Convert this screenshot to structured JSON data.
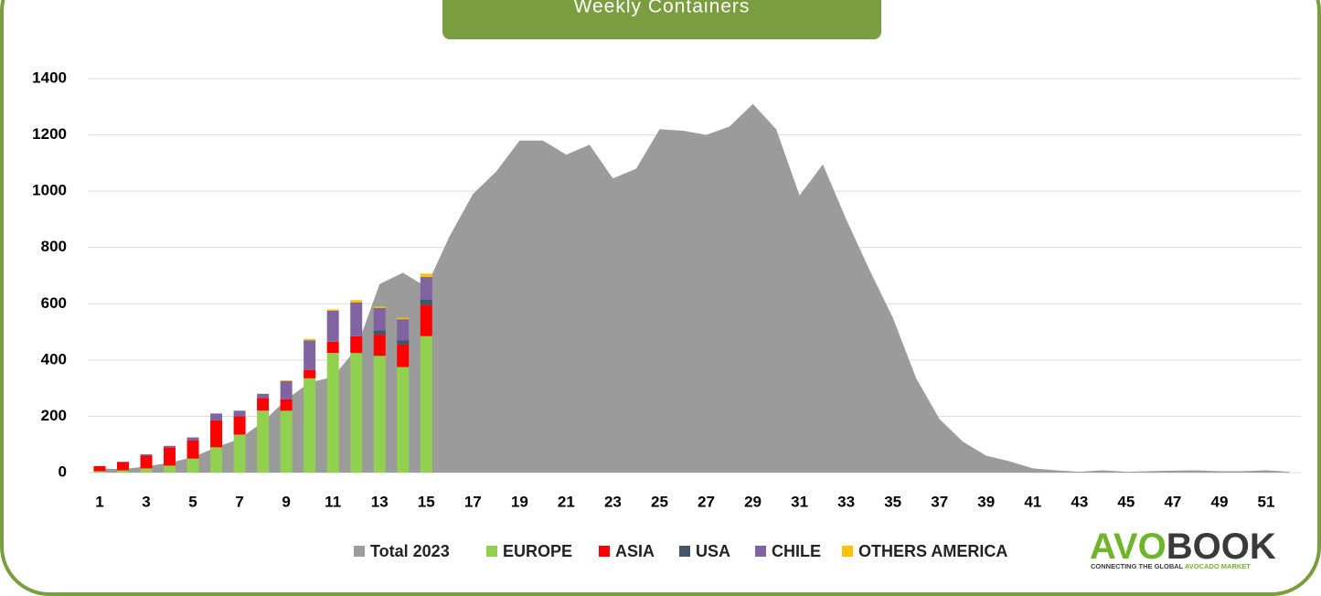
{
  "chart_data": {
    "type": "bar",
    "title": "Weekly Containers",
    "categories": [
      "1",
      null,
      "3",
      null,
      "5",
      null,
      "7",
      null,
      "9",
      null,
      "11",
      null,
      "13",
      null,
      "15",
      null,
      "17",
      null,
      "19",
      null,
      "21",
      null,
      "23",
      null,
      "25",
      null,
      "27",
      null,
      "29",
      null,
      "31",
      null,
      "33",
      null,
      "35",
      null,
      "37",
      null,
      "39",
      null,
      "41",
      null,
      "43",
      null,
      "45",
      null,
      "47",
      null,
      "49",
      null,
      "51",
      null
    ],
    "series": [
      {
        "name": "Total 2023",
        "type": "area",
        "color": "#9b9b9b",
        "values": [
          15,
          12,
          22,
          35,
          55,
          90,
          120,
          180,
          260,
          320,
          340,
          440,
          670,
          710,
          660,
          840,
          990,
          1070,
          1180,
          1180,
          1130,
          1165,
          1045,
          1080,
          1220,
          1215,
          1200,
          1230,
          1310,
          1220,
          985,
          1095,
          900,
          720,
          550,
          335,
          190,
          110,
          60,
          40,
          15,
          8,
          3,
          8,
          3,
          5,
          7,
          8,
          5,
          5,
          8,
          3
        ]
      },
      {
        "name": "EUROPE",
        "type": "bar",
        "color": "#92d050",
        "values": [
          5,
          8,
          15,
          25,
          50,
          90,
          135,
          220,
          220,
          335,
          425,
          425,
          415,
          375,
          485,
          null,
          null,
          null,
          null,
          null,
          null,
          null,
          null,
          null,
          null,
          null,
          null,
          null,
          null,
          null,
          null,
          null,
          null,
          null,
          null,
          null,
          null,
          null,
          null,
          null,
          null,
          null,
          null,
          null,
          null,
          null,
          null,
          null,
          null,
          null,
          null,
          null
        ]
      },
      {
        "name": "ASIA",
        "type": "bar",
        "color": "#ff0000",
        "values": [
          18,
          30,
          45,
          65,
          65,
          95,
          65,
          45,
          40,
          30,
          40,
          60,
          75,
          80,
          110,
          null,
          null,
          null,
          null,
          null,
          null,
          null,
          null,
          null,
          null,
          null,
          null,
          null,
          null,
          null,
          null,
          null,
          null,
          null,
          null,
          null,
          null,
          null,
          null,
          null,
          null,
          null,
          null,
          null,
          null,
          null,
          null,
          null,
          null,
          null,
          null,
          null
        ]
      },
      {
        "name": "USA",
        "type": "bar",
        "color": "#44546a",
        "values": [
          0,
          0,
          0,
          0,
          0,
          0,
          0,
          0,
          0,
          0,
          0,
          0,
          15,
          15,
          20,
          null,
          null,
          null,
          null,
          null,
          null,
          null,
          null,
          null,
          null,
          null,
          null,
          null,
          null,
          null,
          null,
          null,
          null,
          null,
          null,
          null,
          null,
          null,
          null,
          null,
          null,
          null,
          null,
          null,
          null,
          null,
          null,
          null,
          null,
          null,
          null,
          null
        ]
      },
      {
        "name": "CHILE",
        "type": "bar",
        "color": "#8064a2",
        "values": [
          0,
          0,
          5,
          5,
          10,
          25,
          20,
          15,
          65,
          105,
          110,
          120,
          80,
          75,
          80,
          null,
          null,
          null,
          null,
          null,
          null,
          null,
          null,
          null,
          null,
          null,
          null,
          null,
          null,
          null,
          null,
          null,
          null,
          null,
          null,
          null,
          null,
          null,
          null,
          null,
          null,
          null,
          null,
          null,
          null,
          null,
          null,
          null,
          null,
          null,
          null,
          null
        ]
      },
      {
        "name": "OTHERS AMERICA",
        "type": "bar",
        "color": "#ffc000",
        "values": [
          0,
          0,
          0,
          0,
          0,
          0,
          0,
          0,
          3,
          5,
          5,
          8,
          5,
          5,
          12,
          null,
          null,
          null,
          null,
          null,
          null,
          null,
          null,
          null,
          null,
          null,
          null,
          null,
          null,
          null,
          null,
          null,
          null,
          null,
          null,
          null,
          null,
          null,
          null,
          null,
          null,
          null,
          null,
          null,
          null,
          null,
          null,
          null,
          null,
          null,
          null,
          null
        ]
      }
    ],
    "ylim": [
      0,
      1400
    ],
    "yticks": [
      0,
      200,
      400,
      600,
      800,
      1000,
      1200,
      1400
    ],
    "grid": true,
    "legend": "bottom"
  },
  "logo": {
    "brand_a": "AVO",
    "brand_b": "BOOK",
    "tagline_a": "CONNECTING THE GLOBAL ",
    "tagline_b": "AVOCADO MARKET"
  }
}
